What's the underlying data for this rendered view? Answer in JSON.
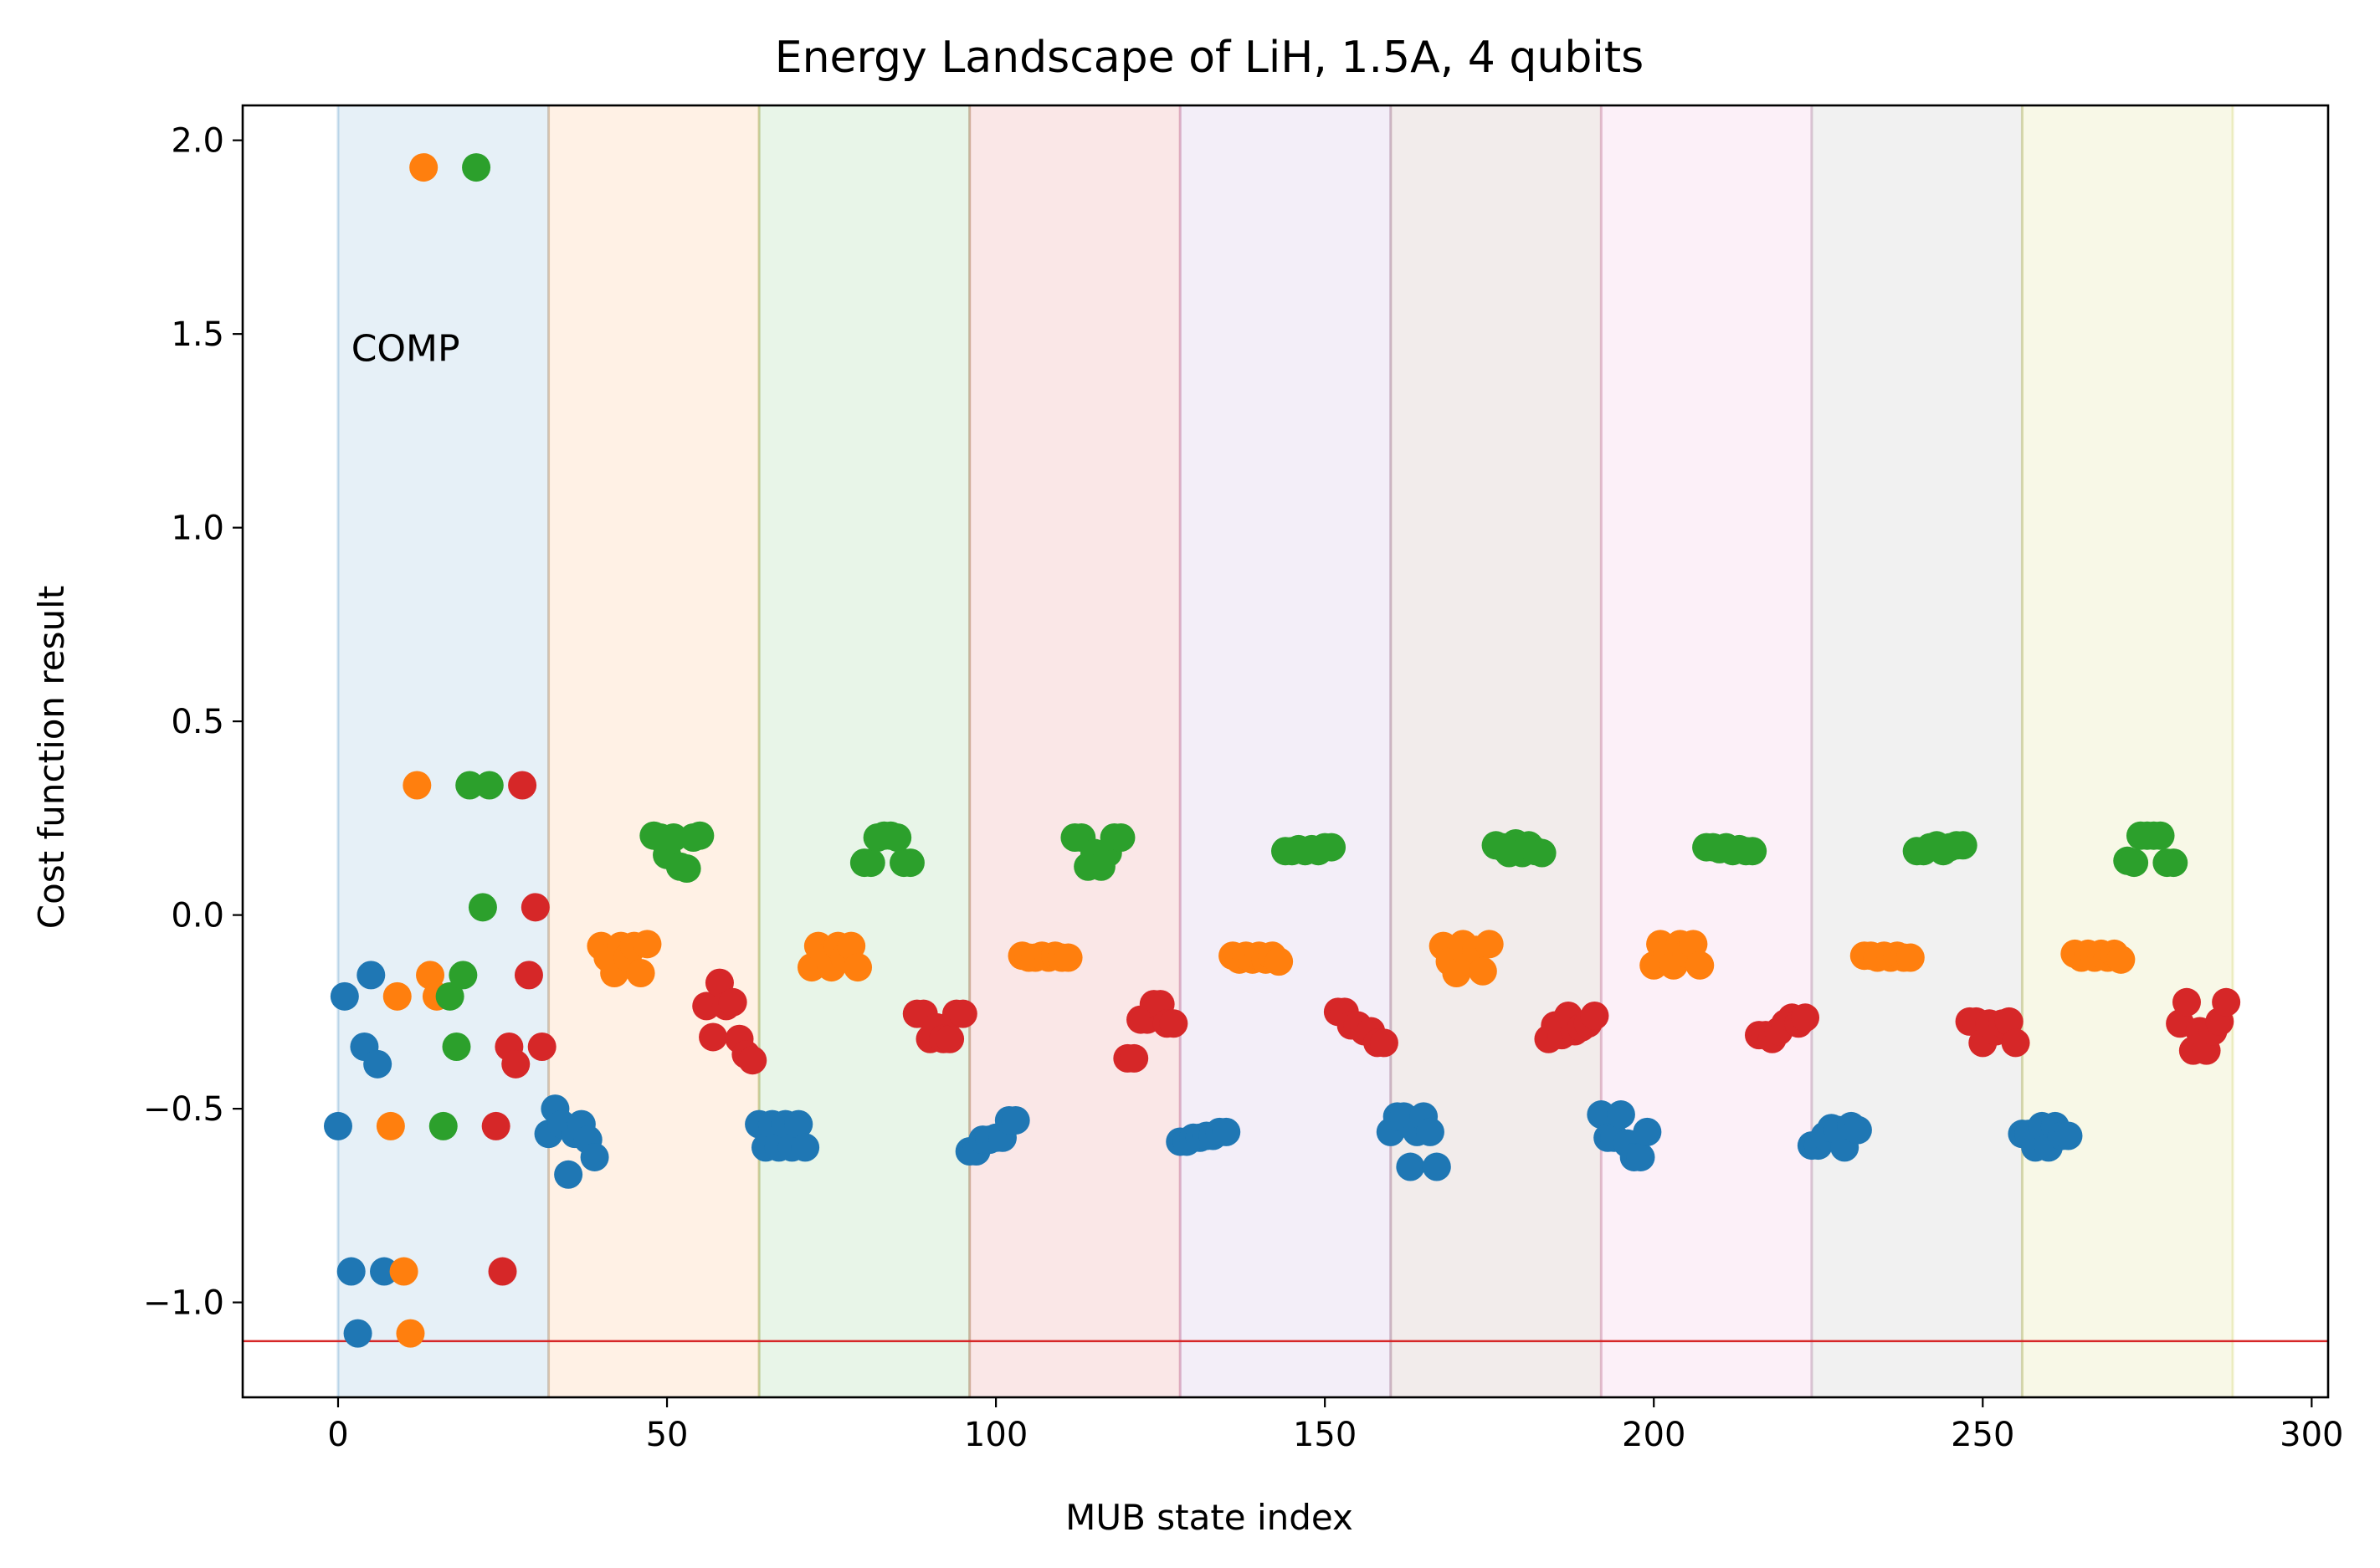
{
  "chart_data": {
    "type": "scatter",
    "title": "Energy Landscape of LiH, 1.5A, 4 qubits",
    "xlabel": "MUB state index",
    "ylabel": "Cost function result",
    "xlim": [
      -14.5,
      302.5
    ],
    "ylim": [
      -1.245,
      2.09
    ],
    "xticks": [
      0,
      50,
      100,
      150,
      200,
      250,
      300
    ],
    "xtick_labels": [
      "0",
      "50",
      "100",
      "150",
      "200",
      "250",
      "300"
    ],
    "yticks": [
      -1.0,
      -0.5,
      0.0,
      0.5,
      1.0,
      1.5,
      2.0
    ],
    "ytick_labels": [
      "−1.0",
      "−0.5",
      "0.0",
      "0.5",
      "1.0",
      "1.5",
      "2.0"
    ],
    "grid": false,
    "annotation": {
      "text": "COMP",
      "x": 2,
      "y": 1.43
    },
    "reference_line": {
      "y": -1.1,
      "color": "#d62728"
    },
    "bands": [
      {
        "x0": 0,
        "x1": 32,
        "color": "#1f77b4"
      },
      {
        "x0": 32,
        "x1": 64,
        "color": "#ff7f0e"
      },
      {
        "x0": 64,
        "x1": 96,
        "color": "#2ca02c"
      },
      {
        "x0": 96,
        "x1": 128,
        "color": "#d62728"
      },
      {
        "x0": 128,
        "x1": 160,
        "color": "#9467bd"
      },
      {
        "x0": 160,
        "x1": 192,
        "color": "#8c564b"
      },
      {
        "x0": 192,
        "x1": 224,
        "color": "#e377c2"
      },
      {
        "x0": 224,
        "x1": 256,
        "color": "#7f7f7f"
      },
      {
        "x0": 256,
        "x1": 288,
        "color": "#bcbd22"
      }
    ],
    "series": [
      {
        "color": "#1f77b4",
        "points": [
          [
            0,
            -0.545
          ],
          [
            1,
            -0.21
          ],
          [
            2,
            -0.92
          ],
          [
            3,
            -1.08
          ],
          [
            4,
            -0.34
          ],
          [
            5,
            -0.155
          ],
          [
            6,
            -0.385
          ],
          [
            7,
            -0.92
          ],
          [
            32,
            -0.565
          ],
          [
            33,
            -0.5
          ],
          [
            34,
            -0.54
          ],
          [
            35,
            -0.67
          ],
          [
            36,
            -0.565
          ],
          [
            37,
            -0.54
          ],
          [
            38,
            -0.58
          ],
          [
            39,
            -0.625
          ],
          [
            64,
            -0.54
          ],
          [
            65,
            -0.6
          ],
          [
            66,
            -0.54
          ],
          [
            67,
            -0.6
          ],
          [
            68,
            -0.54
          ],
          [
            69,
            -0.6
          ],
          [
            70,
            -0.54
          ],
          [
            71,
            -0.6
          ],
          [
            96,
            -0.61
          ],
          [
            97,
            -0.61
          ],
          [
            98,
            -0.58
          ],
          [
            99,
            -0.58
          ],
          [
            100,
            -0.575
          ],
          [
            101,
            -0.575
          ],
          [
            102,
            -0.53
          ],
          [
            103,
            -0.53
          ],
          [
            128,
            -0.585
          ],
          [
            129,
            -0.585
          ],
          [
            130,
            -0.575
          ],
          [
            131,
            -0.575
          ],
          [
            132,
            -0.57
          ],
          [
            133,
            -0.57
          ],
          [
            134,
            -0.56
          ],
          [
            135,
            -0.56
          ],
          [
            160,
            -0.56
          ],
          [
            161,
            -0.52
          ],
          [
            162,
            -0.52
          ],
          [
            163,
            -0.65
          ],
          [
            164,
            -0.56
          ],
          [
            165,
            -0.52
          ],
          [
            166,
            -0.56
          ],
          [
            167,
            -0.65
          ],
          [
            192,
            -0.515
          ],
          [
            193,
            -0.575
          ],
          [
            194,
            -0.575
          ],
          [
            195,
            -0.515
          ],
          [
            196,
            -0.59
          ],
          [
            197,
            -0.625
          ],
          [
            198,
            -0.625
          ],
          [
            199,
            -0.56
          ],
          [
            224,
            -0.595
          ],
          [
            225,
            -0.595
          ],
          [
            226,
            -0.57
          ],
          [
            227,
            -0.55
          ],
          [
            228,
            -0.555
          ],
          [
            229,
            -0.6
          ],
          [
            230,
            -0.545
          ],
          [
            231,
            -0.555
          ],
          [
            256,
            -0.565
          ],
          [
            257,
            -0.565
          ],
          [
            258,
            -0.6
          ],
          [
            259,
            -0.545
          ],
          [
            260,
            -0.6
          ],
          [
            261,
            -0.545
          ],
          [
            262,
            -0.57
          ],
          [
            263,
            -0.57
          ]
        ]
      },
      {
        "color": "#ff7f0e",
        "points": [
          [
            8,
            -0.545
          ],
          [
            9,
            -0.21
          ],
          [
            10,
            -0.92
          ],
          [
            11,
            -1.08
          ],
          [
            12,
            0.335
          ],
          [
            13,
            1.93
          ],
          [
            14,
            -0.155
          ],
          [
            15,
            -0.21
          ],
          [
            40,
            -0.08
          ],
          [
            41,
            -0.11
          ],
          [
            42,
            -0.15
          ],
          [
            43,
            -0.08
          ],
          [
            44,
            -0.11
          ],
          [
            45,
            -0.08
          ],
          [
            46,
            -0.15
          ],
          [
            47,
            -0.075
          ],
          [
            72,
            -0.135
          ],
          [
            73,
            -0.08
          ],
          [
            74,
            -0.11
          ],
          [
            75,
            -0.135
          ],
          [
            76,
            -0.08
          ],
          [
            77,
            -0.11
          ],
          [
            78,
            -0.08
          ],
          [
            79,
            -0.135
          ],
          [
            104,
            -0.105
          ],
          [
            105,
            -0.11
          ],
          [
            106,
            -0.11
          ],
          [
            107,
            -0.105
          ],
          [
            108,
            -0.11
          ],
          [
            109,
            -0.105
          ],
          [
            110,
            -0.11
          ],
          [
            111,
            -0.11
          ],
          [
            136,
            -0.105
          ],
          [
            137,
            -0.115
          ],
          [
            138,
            -0.105
          ],
          [
            139,
            -0.115
          ],
          [
            140,
            -0.105
          ],
          [
            141,
            -0.115
          ],
          [
            142,
            -0.105
          ],
          [
            143,
            -0.12
          ],
          [
            168,
            -0.08
          ],
          [
            169,
            -0.12
          ],
          [
            170,
            -0.15
          ],
          [
            171,
            -0.075
          ],
          [
            172,
            -0.12
          ],
          [
            173,
            -0.09
          ],
          [
            174,
            -0.145
          ],
          [
            175,
            -0.075
          ],
          [
            200,
            -0.13
          ],
          [
            201,
            -0.075
          ],
          [
            202,
            -0.1
          ],
          [
            203,
            -0.13
          ],
          [
            204,
            -0.075
          ],
          [
            205,
            -0.1
          ],
          [
            206,
            -0.075
          ],
          [
            207,
            -0.13
          ],
          [
            232,
            -0.105
          ],
          [
            233,
            -0.105
          ],
          [
            234,
            -0.11
          ],
          [
            235,
            -0.105
          ],
          [
            236,
            -0.11
          ],
          [
            237,
            -0.105
          ],
          [
            238,
            -0.11
          ],
          [
            239,
            -0.11
          ],
          [
            264,
            -0.1
          ],
          [
            265,
            -0.11
          ],
          [
            266,
            -0.1
          ],
          [
            267,
            -0.11
          ],
          [
            268,
            -0.1
          ],
          [
            269,
            -0.11
          ],
          [
            270,
            -0.1
          ],
          [
            271,
            -0.115
          ]
        ]
      },
      {
        "color": "#2ca02c",
        "points": [
          [
            16,
            -0.545
          ],
          [
            17,
            -0.21
          ],
          [
            18,
            -0.34
          ],
          [
            19,
            -0.155
          ],
          [
            20,
            0.335
          ],
          [
            21,
            1.93
          ],
          [
            22,
            0.02
          ],
          [
            23,
            0.335
          ],
          [
            48,
            0.205
          ],
          [
            49,
            0.2
          ],
          [
            50,
            0.155
          ],
          [
            51,
            0.2
          ],
          [
            52,
            0.125
          ],
          [
            53,
            0.12
          ],
          [
            54,
            0.2
          ],
          [
            55,
            0.205
          ],
          [
            80,
            0.135
          ],
          [
            81,
            0.135
          ],
          [
            82,
            0.2
          ],
          [
            83,
            0.205
          ],
          [
            84,
            0.205
          ],
          [
            85,
            0.2
          ],
          [
            86,
            0.135
          ],
          [
            87,
            0.135
          ],
          [
            112,
            0.2
          ],
          [
            113,
            0.2
          ],
          [
            114,
            0.125
          ],
          [
            115,
            0.16
          ],
          [
            116,
            0.125
          ],
          [
            117,
            0.16
          ],
          [
            118,
            0.2
          ],
          [
            119,
            0.2
          ],
          [
            144,
            0.165
          ],
          [
            145,
            0.165
          ],
          [
            146,
            0.17
          ],
          [
            147,
            0.165
          ],
          [
            148,
            0.17
          ],
          [
            149,
            0.165
          ],
          [
            150,
            0.175
          ],
          [
            151,
            0.175
          ],
          [
            176,
            0.18
          ],
          [
            177,
            0.175
          ],
          [
            178,
            0.16
          ],
          [
            179,
            0.185
          ],
          [
            180,
            0.16
          ],
          [
            181,
            0.18
          ],
          [
            182,
            0.165
          ],
          [
            183,
            0.16
          ],
          [
            208,
            0.175
          ],
          [
            209,
            0.175
          ],
          [
            210,
            0.17
          ],
          [
            211,
            0.175
          ],
          [
            212,
            0.165
          ],
          [
            213,
            0.17
          ],
          [
            214,
            0.165
          ],
          [
            215,
            0.165
          ],
          [
            240,
            0.165
          ],
          [
            241,
            0.165
          ],
          [
            242,
            0.175
          ],
          [
            243,
            0.18
          ],
          [
            244,
            0.165
          ],
          [
            245,
            0.175
          ],
          [
            246,
            0.18
          ],
          [
            247,
            0.18
          ],
          [
            272,
            0.14
          ],
          [
            273,
            0.135
          ],
          [
            274,
            0.205
          ],
          [
            275,
            0.205
          ],
          [
            276,
            0.205
          ],
          [
            277,
            0.205
          ],
          [
            278,
            0.135
          ],
          [
            279,
            0.135
          ]
        ]
      },
      {
        "color": "#d62728",
        "points": [
          [
            24,
            -0.545
          ],
          [
            25,
            -0.92
          ],
          [
            26,
            -0.34
          ],
          [
            27,
            -0.385
          ],
          [
            28,
            0.335
          ],
          [
            29,
            -0.155
          ],
          [
            30,
            0.02
          ],
          [
            31,
            -0.34
          ],
          [
            56,
            -0.235
          ],
          [
            57,
            -0.315
          ],
          [
            58,
            -0.175
          ],
          [
            59,
            -0.235
          ],
          [
            60,
            -0.225
          ],
          [
            61,
            -0.32
          ],
          [
            62,
            -0.36
          ],
          [
            63,
            -0.375
          ],
          [
            88,
            -0.255
          ],
          [
            89,
            -0.255
          ],
          [
            90,
            -0.32
          ],
          [
            91,
            -0.29
          ],
          [
            92,
            -0.32
          ],
          [
            93,
            -0.32
          ],
          [
            94,
            -0.255
          ],
          [
            95,
            -0.255
          ],
          [
            120,
            -0.37
          ],
          [
            121,
            -0.37
          ],
          [
            122,
            -0.27
          ],
          [
            123,
            -0.27
          ],
          [
            124,
            -0.23
          ],
          [
            125,
            -0.23
          ],
          [
            126,
            -0.28
          ],
          [
            127,
            -0.28
          ],
          [
            152,
            -0.25
          ],
          [
            153,
            -0.25
          ],
          [
            154,
            -0.285
          ],
          [
            155,
            -0.285
          ],
          [
            156,
            -0.3
          ],
          [
            157,
            -0.3
          ],
          [
            158,
            -0.33
          ],
          [
            159,
            -0.33
          ],
          [
            184,
            -0.32
          ],
          [
            185,
            -0.285
          ],
          [
            186,
            -0.31
          ],
          [
            187,
            -0.26
          ],
          [
            188,
            -0.3
          ],
          [
            189,
            -0.29
          ],
          [
            190,
            -0.28
          ],
          [
            191,
            -0.26
          ],
          [
            216,
            -0.31
          ],
          [
            217,
            -0.31
          ],
          [
            218,
            -0.32
          ],
          [
            219,
            -0.3
          ],
          [
            220,
            -0.28
          ],
          [
            221,
            -0.265
          ],
          [
            222,
            -0.28
          ],
          [
            223,
            -0.265
          ],
          [
            248,
            -0.275
          ],
          [
            249,
            -0.275
          ],
          [
            250,
            -0.33
          ],
          [
            251,
            -0.28
          ],
          [
            252,
            -0.3
          ],
          [
            253,
            -0.28
          ],
          [
            254,
            -0.275
          ],
          [
            255,
            -0.33
          ],
          [
            280,
            -0.28
          ],
          [
            281,
            -0.225
          ],
          [
            282,
            -0.35
          ],
          [
            283,
            -0.3
          ],
          [
            284,
            -0.35
          ],
          [
            285,
            -0.3
          ],
          [
            286,
            -0.275
          ],
          [
            287,
            -0.225
          ]
        ]
      }
    ]
  }
}
